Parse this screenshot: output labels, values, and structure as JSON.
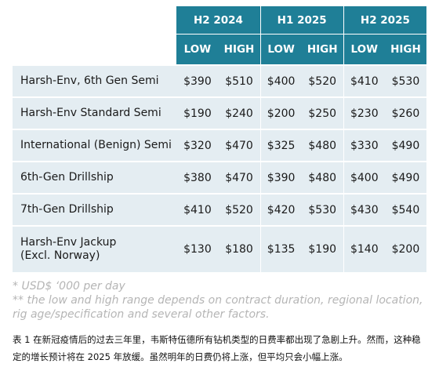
{
  "table": {
    "groups": [
      "H2 2024",
      "H1 2025",
      "H2 2025"
    ],
    "subheaders": [
      "LOW",
      "HIGH",
      "LOW",
      "HIGH",
      "LOW",
      "HIGH"
    ],
    "rows": [
      {
        "name": [
          "Harsh-Env, 6th Gen Semi"
        ],
        "values": [
          "$390",
          "$510",
          "$400",
          "$520",
          "$410",
          "$530"
        ]
      },
      {
        "name": [
          "Harsh-Env Standard Semi"
        ],
        "values": [
          "$190",
          "$240",
          "$200",
          "$250",
          "$230",
          "$260"
        ]
      },
      {
        "name": [
          "International (Benign) Semi"
        ],
        "values": [
          "$320",
          "$470",
          "$325",
          "$480",
          "$330",
          "$490"
        ]
      },
      {
        "name": [
          "6th-Gen Drillship"
        ],
        "values": [
          "$380",
          "$470",
          "$390",
          "$480",
          "$400",
          "$490"
        ]
      },
      {
        "name": [
          "7th-Gen Drillship"
        ],
        "values": [
          "$410",
          "$520",
          "$420",
          "$530",
          "$430",
          "$540"
        ]
      },
      {
        "name": [
          "Harsh-Env Jackup",
          "(Excl. Norway)"
        ],
        "values": [
          "$130",
          "$180",
          "$135",
          "$190",
          "$140",
          "$200"
        ]
      }
    ]
  },
  "notes": {
    "unit": "* USD$ ‘000 per day",
    "range": "** the low and high range depends on contract duration, regional location, rig age/specification and several other factors."
  },
  "caption": "表 1  在新冠疫情后的过去三年里，韦斯特伍德所有钻机类型的日费率都出现了急剧上升。然而，这种稳定的增长预计将在 2025 年放缓。虽然明年的日费仍将上涨，但平均只会小幅上涨。"
}
